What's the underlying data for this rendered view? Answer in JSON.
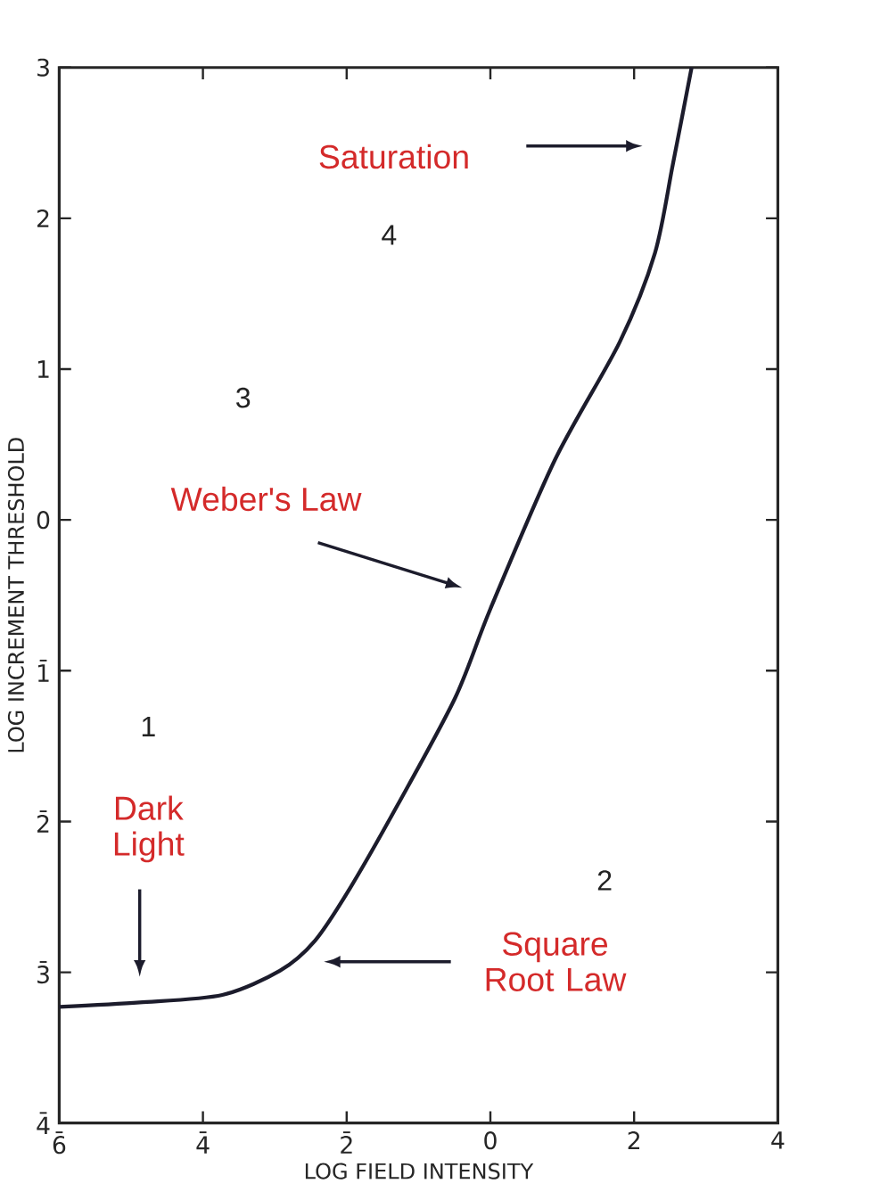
{
  "chart_data": {
    "type": "line",
    "xlabel": "LOG FIELD INTENSITY",
    "ylabel": "LOG INCREMENT THRESHOLD",
    "x": [
      -6,
      -4.88,
      -3.73,
      -2.93,
      -2.44,
      -1.95,
      -1.29,
      -0.49,
      0,
      0.9,
      1.8,
      2.29,
      2.54,
      2.8
    ],
    "series": [
      {
        "color": "#1c1c2c",
        "values": [
          -3.23,
          -3.2,
          -3.15,
          -2.99,
          -2.79,
          -2.44,
          -1.89,
          -1.18,
          -0.59,
          0.4,
          1.18,
          1.77,
          2.36,
          3
        ]
      }
    ],
    "xlim": [
      -6,
      4
    ],
    "ylim": [
      -4,
      3
    ],
    "xticks": [
      {
        "value": -6,
        "label": "6̄"
      },
      {
        "value": -4,
        "label": "4̄"
      },
      {
        "value": -2,
        "label": "2̄"
      },
      0,
      2,
      4
    ],
    "yticks": [
      {
        "value": -4,
        "label": "4̄"
      },
      {
        "value": -3,
        "label": "3̄"
      },
      {
        "value": -2,
        "label": "2̄"
      },
      {
        "value": -1,
        "label": "1̄"
      },
      0,
      1,
      2,
      3
    ],
    "marker": "none",
    "line_style": "solid",
    "annotations": [
      "1",
      "2",
      "3",
      "4",
      "Saturation",
      "Weber's Law",
      "Dark Light",
      "Square Root Law"
    ]
  }
}
